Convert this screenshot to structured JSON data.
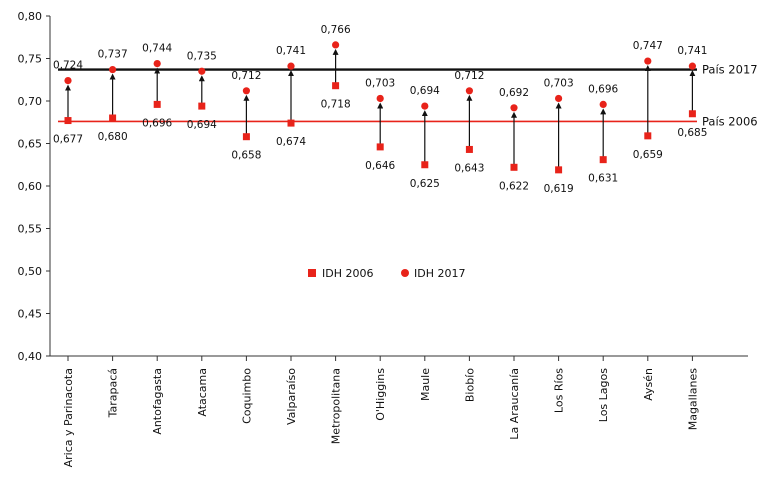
{
  "chart_data": {
    "type": "scatter",
    "ylim": [
      0.4,
      0.8
    ],
    "yticks": [
      "0,40",
      "0,45",
      "0,50",
      "0,55",
      "0,60",
      "0,65",
      "0,70",
      "0,75",
      "0,80"
    ],
    "categories": [
      "Arica y Parinacota",
      "Tarapacá",
      "Antofagasta",
      "Atacama",
      "Coquimbo",
      "Valparaíso",
      "Metropolitana",
      "O'Higgins",
      "Maule",
      "Biobío",
      "La Araucanía",
      "Los Ríos",
      "Los Lagos",
      "Aysén",
      "Magallanes"
    ],
    "series": [
      {
        "name": "IDH 2006",
        "marker": "square",
        "color": "#e8231a",
        "values": [
          0.677,
          0.68,
          0.696,
          0.694,
          0.658,
          0.674,
          0.718,
          0.646,
          0.625,
          0.643,
          0.622,
          0.619,
          0.631,
          0.659,
          0.685
        ],
        "labels": [
          "0,677",
          "0,680",
          "0,696",
          "0,694",
          "0,658",
          "0,674",
          "0,718",
          "0,646",
          "0,625",
          "0,643",
          "0,622",
          "0,619",
          "0,631",
          "0,659",
          "0,685"
        ]
      },
      {
        "name": "IDH 2017",
        "marker": "circle",
        "color": "#e8231a",
        "values": [
          0.724,
          0.737,
          0.744,
          0.735,
          0.712,
          0.741,
          0.766,
          0.703,
          0.694,
          0.712,
          0.692,
          0.703,
          0.696,
          0.747,
          0.741
        ],
        "labels": [
          "0,724",
          "0,737",
          "0,744",
          "0,735",
          "0,712",
          "0,741",
          "0,766",
          "0,703",
          "0,694",
          "0,712",
          "0,692",
          "0,703",
          "0,696",
          "0,747",
          "0,741"
        ]
      }
    ],
    "reference_lines": [
      {
        "label": "País 2017",
        "value": 0.737,
        "color": "#111111"
      },
      {
        "label": "País 2006",
        "value": 0.676,
        "color": "#e8231a"
      }
    ],
    "legend": {
      "position": "center"
    },
    "grid": false
  }
}
